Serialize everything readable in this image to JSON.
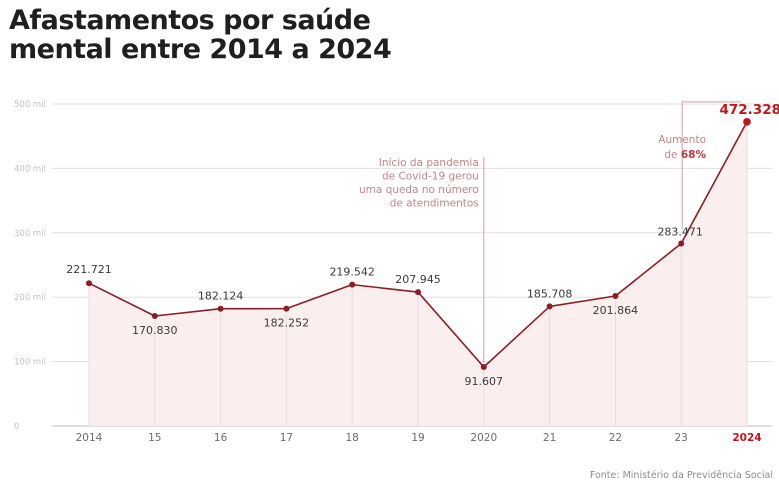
{
  "title_line1": "Afastamentos por saúde",
  "title_line2": "mental entre 2014 a 2024",
  "source": "Fonte: Ministério da Previdência Social",
  "colors": {
    "line": "#8b1d24",
    "fill": "#fbeeee",
    "highlight": "#c0161c",
    "annotation": "#d99ca0",
    "grid": "#e0e0e0",
    "tick_text": "#6b6b6b"
  },
  "annotations": {
    "covid": [
      "Início da pandemia",
      "de Covid-19 gerou",
      "uma queda no número",
      "de atendimentos"
    ],
    "increase_prefix": "Aumento",
    "increase_word": "de",
    "increase_value": "68%"
  },
  "chart_data": {
    "type": "area",
    "title": "Afastamentos por saúde mental entre 2014 a 2024",
    "xlabel": "",
    "ylabel": "",
    "categories": [
      "2014",
      "15",
      "16",
      "17",
      "18",
      "19",
      "2020",
      "21",
      "22",
      "23",
      "2024"
    ],
    "values": [
      221721,
      170830,
      182124,
      182252,
      219542,
      207945,
      91607,
      185708,
      201864,
      283471,
      472328
    ],
    "value_labels": [
      "221.721",
      "170.830",
      "182.124",
      "182.252",
      "219.542",
      "207.945",
      "91.607",
      "185.708",
      "201.864",
      "283.471",
      "472.328"
    ],
    "ylim": [
      0,
      500000
    ],
    "yticks": [
      0,
      100000,
      200000,
      300000,
      400000,
      500000
    ],
    "ytick_labels": [
      "0",
      "100 mil",
      "200 mil",
      "300 mil",
      "400 mil",
      "500 mil"
    ],
    "highlighted_category": "2024",
    "grid": true,
    "legend": "none"
  }
}
